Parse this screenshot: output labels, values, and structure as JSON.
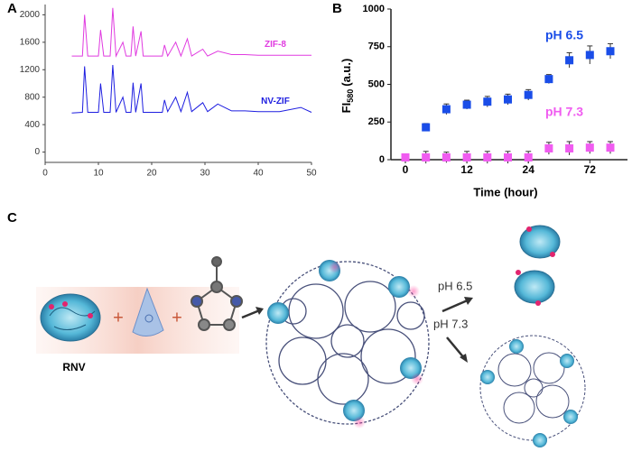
{
  "chart_data": [
    {
      "type": "line",
      "panel": "A",
      "x": [
        5,
        7,
        7.4,
        8,
        10,
        10.4,
        11,
        12.2,
        12.7,
        13.3,
        14.6,
        15.2,
        16.1,
        16.5,
        17,
        18,
        18.4,
        19.5,
        22,
        22.4,
        23,
        24.5,
        25.5,
        26.7,
        27.5,
        29.6,
        30.5,
        32.4,
        35,
        37.5,
        40,
        44,
        48,
        50
      ],
      "series": [
        {
          "name": "ZIF-8",
          "color": "#e03be0",
          "values": [
            1400,
            1400,
            2000,
            1400,
            1400,
            1780,
            1400,
            1400,
            2100,
            1400,
            1600,
            1400,
            1400,
            1830,
            1400,
            1760,
            1400,
            1400,
            1400,
            1560,
            1400,
            1600,
            1400,
            1650,
            1400,
            1500,
            1400,
            1470,
            1420,
            1420,
            1410,
            1410,
            1410,
            1410
          ]
        },
        {
          "name": "NV-ZIF",
          "color": "#1e1ee0",
          "values": [
            570,
            580,
            1250,
            580,
            580,
            1000,
            580,
            580,
            1270,
            580,
            800,
            580,
            580,
            1010,
            580,
            1000,
            580,
            580,
            580,
            760,
            590,
            800,
            590,
            870,
            590,
            720,
            590,
            700,
            600,
            600,
            590,
            590,
            650,
            580
          ]
        }
      ],
      "xlim": [
        0,
        50
      ],
      "xticks": [
        0,
        10,
        20,
        30,
        40,
        50
      ],
      "ylim": [
        -150,
        2150
      ],
      "yticks": [
        0,
        400,
        800,
        1200,
        1600,
        2000
      ]
    },
    {
      "type": "scatter",
      "panel": "B",
      "categories": [
        "0",
        null,
        null,
        "12",
        null,
        null,
        "24",
        null,
        null,
        "72",
        null
      ],
      "series": [
        {
          "name": "pH 6.5",
          "color": "#1a4de8",
          "values": [
            15,
            215,
            335,
            365,
            385,
            400,
            430,
            535,
            660,
            695,
            720
          ],
          "errors": [
            0,
            25,
            35,
            30,
            35,
            35,
            35,
            30,
            50,
            60,
            50
          ]
        },
        {
          "name": "pH 7.3",
          "color": "#f05cf0",
          "values": [
            15,
            15,
            15,
            15,
            15,
            15,
            15,
            75,
            75,
            80,
            80
          ],
          "errors": [
            0,
            40,
            35,
            40,
            40,
            40,
            40,
            40,
            45,
            40,
            40
          ]
        }
      ],
      "ylim": [
        0,
        1000
      ],
      "yticks": [
        0,
        250,
        500,
        750,
        1000
      ],
      "x_label": "Time (hour)",
      "y_label": [
        "FI",
        "580",
        "(a.u.)"
      ]
    }
  ],
  "panel_c": {
    "panel": "C",
    "reagent_label": "RNV",
    "plus_signs": [
      "+",
      "+"
    ],
    "conditions": [
      "pH 6.5",
      "pH 7.3"
    ]
  }
}
